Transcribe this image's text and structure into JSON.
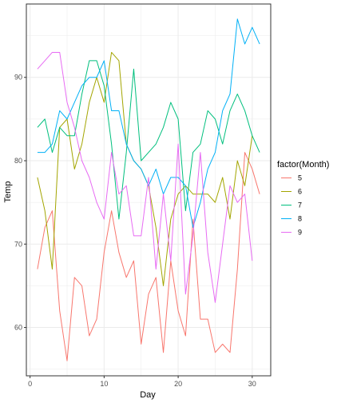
{
  "chart_data": {
    "type": "line",
    "xlabel": "Day",
    "ylabel": "Temp",
    "legend_title": "factor(Month)",
    "legend_position": "right",
    "grid": true,
    "xlim": [
      -0.5,
      32.5
    ],
    "ylim": [
      54.2,
      98.8
    ],
    "x_ticks": [
      0,
      10,
      20,
      30
    ],
    "y_ticks": [
      60,
      70,
      80,
      90
    ],
    "series": [
      {
        "name": "5",
        "color": "#F8766D",
        "x": [
          1,
          2,
          3,
          4,
          5,
          6,
          7,
          8,
          9,
          10,
          11,
          12,
          13,
          14,
          15,
          16,
          17,
          18,
          19,
          20,
          21,
          22,
          23,
          24,
          25,
          26,
          27,
          28,
          29,
          30,
          31
        ],
        "values": [
          67,
          72,
          74,
          62,
          56,
          66,
          65,
          59,
          61,
          69,
          74,
          69,
          66,
          68,
          58,
          64,
          66,
          57,
          68,
          62,
          59,
          73,
          61,
          61,
          57,
          58,
          57,
          67,
          81,
          79,
          76
        ]
      },
      {
        "name": "6",
        "color": "#A3A500",
        "x": [
          1,
          2,
          3,
          4,
          5,
          6,
          7,
          8,
          9,
          10,
          11,
          12,
          13,
          14,
          15,
          16,
          17,
          18,
          19,
          20,
          21,
          22,
          23,
          24,
          25,
          26,
          27,
          28,
          29,
          30
        ],
        "values": [
          78,
          74,
          67,
          84,
          85,
          79,
          82,
          87,
          90,
          87,
          93,
          92,
          82,
          80,
          79,
          77,
          72,
          65,
          73,
          76,
          77,
          76,
          76,
          76,
          75,
          78,
          73,
          80,
          77,
          83
        ]
      },
      {
        "name": "7",
        "color": "#00BF7D",
        "x": [
          1,
          2,
          3,
          4,
          5,
          6,
          7,
          8,
          9,
          10,
          11,
          12,
          13,
          14,
          15,
          16,
          17,
          18,
          19,
          20,
          21,
          22,
          23,
          24,
          25,
          26,
          27,
          28,
          29,
          30,
          31
        ],
        "values": [
          84,
          85,
          81,
          84,
          83,
          83,
          88,
          92,
          92,
          89,
          82,
          73,
          81,
          91,
          80,
          81,
          82,
          84,
          87,
          85,
          74,
          81,
          82,
          86,
          85,
          82,
          86,
          88,
          86,
          83,
          81
        ]
      },
      {
        "name": "8",
        "color": "#00B0F6",
        "x": [
          1,
          2,
          3,
          4,
          5,
          6,
          7,
          8,
          9,
          10,
          11,
          12,
          13,
          14,
          15,
          16,
          17,
          18,
          19,
          20,
          21,
          22,
          23,
          24,
          25,
          26,
          27,
          28,
          29,
          30,
          31
        ],
        "values": [
          81,
          81,
          82,
          86,
          85,
          87,
          89,
          90,
          90,
          92,
          86,
          86,
          82,
          80,
          79,
          77,
          79,
          76,
          78,
          78,
          77,
          72,
          75,
          79,
          81,
          86,
          88,
          97,
          94,
          96,
          94
        ]
      },
      {
        "name": "9",
        "color": "#E76BF3",
        "x": [
          1,
          2,
          3,
          4,
          5,
          6,
          7,
          8,
          9,
          10,
          11,
          12,
          13,
          14,
          15,
          16,
          17,
          18,
          19,
          20,
          21,
          22,
          23,
          24,
          25,
          26,
          27,
          28,
          29,
          30
        ],
        "values": [
          91,
          92,
          93,
          93,
          87,
          84,
          80,
          78,
          75,
          73,
          81,
          76,
          77,
          71,
          71,
          78,
          67,
          76,
          68,
          82,
          64,
          71,
          81,
          69,
          63,
          70,
          77,
          75,
          76,
          68
        ]
      }
    ]
  }
}
